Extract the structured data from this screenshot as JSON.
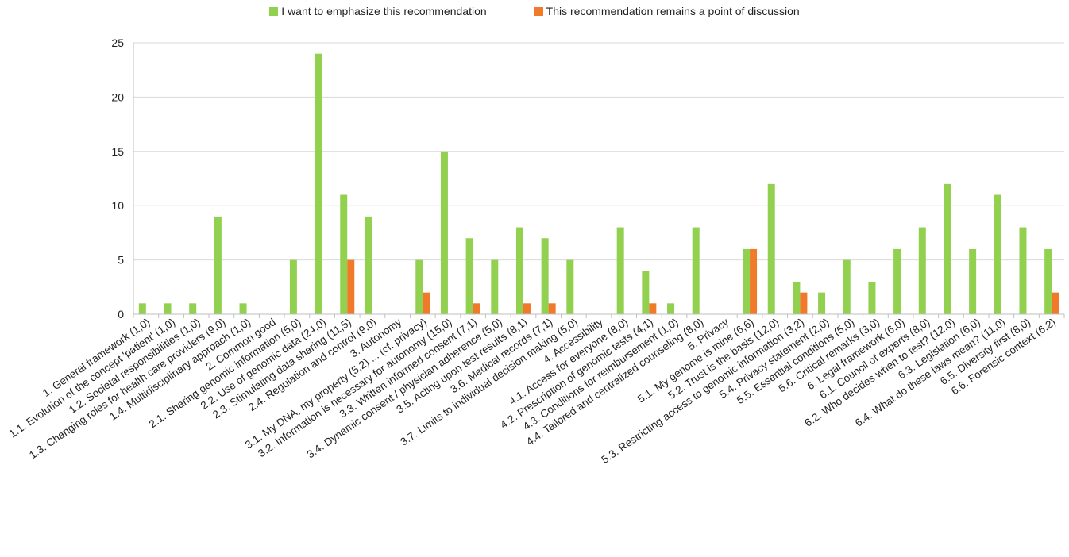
{
  "chart_data": {
    "type": "bar",
    "categories": [
      "1. General framework (1,0)",
      "1.1. Evolution of the concept 'patient' (1,0)",
      "1.2. Societal responsibilities (1,0)",
      "1.3. Changing roles for health care providers (9,0)",
      "1.4. Multidisciplinary approach (1,0)",
      "2. Common good",
      "2.1. Sharing genomic information (5,0)",
      "2.2. Use of genomic data (24,0)",
      "2.3. Stimulating data sharing (11,5)",
      "2.4. Regulation and control (9,0)",
      "3. Autonomy",
      "3.1. My DNA, my property (5,2) ... (cf. privacy)",
      "3.2. Information is necessary for autonomy (15,0)",
      "3.3. Written informed consent (7,1)",
      "3.4. Dynamic consent / physician adherence (5,0)",
      "3.5. Acting upon test results (8,1)",
      "3.6. Medical records (7,1)",
      "3.7. Limits to individual decision making (5,0)",
      "4. Accessibility",
      "4.1. Access for everyone (8,0)",
      "4.2. Prescription of genomic tests (4,1)",
      "4.3. Conditions for reimbursement (1,0)",
      "4.4. Tailored and centralized counseling (8,0)",
      "5. Privacy",
      "5.1. My genome is mine (6,6)",
      "5.2. Trust is the basis (12,0)",
      "5.3. Restricting access to genomic information (3,2)",
      "5.4. Privacy statement (2,0)",
      "5.5. Essential conditions (5,0)",
      "5.6. Critical remarks (3,0)",
      "6. Legal framework (6,0)",
      "6.1. Council of experts (8,0)",
      "6.2. Who decides when to test? (12,0)",
      "6.3. Legislation (6,0)",
      "6.4. What do these laws mean? (11,0)",
      "6.5. Diversity first (8,0)",
      "6.6. Forensic context (6,2)"
    ],
    "series": [
      {
        "name": "I want to emphasize this recommendation",
        "color": "#92d050",
        "values": [
          1,
          1,
          1,
          9,
          1,
          0,
          5,
          24,
          11,
          9,
          0,
          5,
          15,
          7,
          5,
          8,
          7,
          5,
          0,
          8,
          4,
          1,
          8,
          0,
          6,
          12,
          3,
          2,
          5,
          3,
          6,
          8,
          12,
          6,
          11,
          8,
          6
        ]
      },
      {
        "name": "This recommendation remains a point of discussion",
        "color": "#f07a2a",
        "values": [
          0,
          0,
          0,
          0,
          0,
          0,
          0,
          0,
          5,
          0,
          0,
          2,
          0,
          1,
          0,
          1,
          1,
          0,
          0,
          0,
          1,
          0,
          0,
          0,
          6,
          0,
          2,
          0,
          0,
          0,
          0,
          0,
          0,
          0,
          0,
          0,
          2
        ]
      }
    ],
    "yticks": [
      "0",
      "5",
      "10",
      "15",
      "20",
      "25"
    ],
    "ylim": [
      0,
      25
    ],
    "grid": true,
    "legend_position": "top"
  }
}
